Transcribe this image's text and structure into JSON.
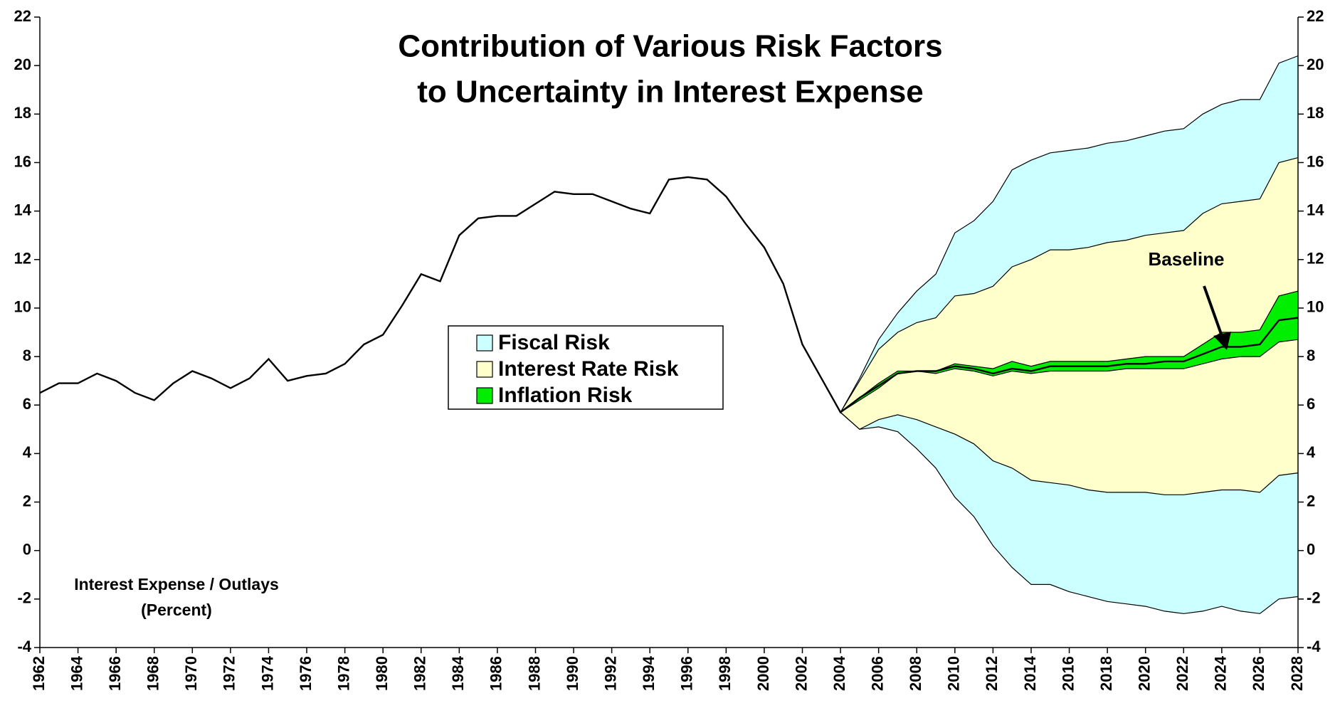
{
  "chart_data": {
    "type": "fan",
    "title": [
      "Contribution of Various Risk Factors",
      "to Uncertainty in Interest Expense"
    ],
    "ylabel": [
      "Interest Expense / Outlays",
      "(Percent)"
    ],
    "annotation": "Baseline",
    "x": [
      1962,
      1963,
      1964,
      1965,
      1966,
      1967,
      1968,
      1969,
      1970,
      1971,
      1972,
      1973,
      1974,
      1975,
      1976,
      1977,
      1978,
      1979,
      1980,
      1981,
      1982,
      1983,
      1984,
      1985,
      1986,
      1987,
      1988,
      1989,
      1990,
      1991,
      1992,
      1993,
      1994,
      1995,
      1996,
      1997,
      1998,
      1999,
      2000,
      2001,
      2002,
      2003,
      2004,
      2005,
      2006,
      2007,
      2008,
      2009,
      2010,
      2011,
      2012,
      2013,
      2014,
      2015,
      2016,
      2017,
      2018,
      2019,
      2020,
      2021,
      2022,
      2023,
      2024,
      2025,
      2026,
      2027,
      2028
    ],
    "line": [
      6.5,
      6.9,
      6.9,
      7.3,
      7.0,
      6.5,
      6.2,
      6.9,
      7.4,
      7.1,
      6.7,
      7.1,
      7.9,
      7.0,
      7.2,
      7.3,
      7.7,
      8.5,
      8.9,
      10.1,
      11.4,
      11.1,
      13.0,
      13.7,
      13.8,
      13.8,
      14.3,
      14.8,
      14.7,
      14.7,
      14.4,
      14.1,
      13.9,
      15.3,
      15.4,
      15.3,
      14.6,
      13.5,
      12.5,
      11.0,
      8.5,
      7.1,
      5.7,
      6.3,
      6.8,
      7.3,
      7.4,
      7.4,
      7.6,
      7.5,
      7.3,
      7.5,
      7.4,
      7.6,
      7.6,
      7.6,
      7.6,
      7.7,
      7.7,
      7.8,
      7.8,
      8.1,
      8.4,
      8.4,
      8.5,
      9.5,
      9.6
    ],
    "line_color": "#000000",
    "series": [
      {
        "name": "Fiscal Risk",
        "color": "#ccffff",
        "upper": [
          null,
          null,
          null,
          null,
          null,
          null,
          null,
          null,
          null,
          null,
          null,
          null,
          null,
          null,
          null,
          null,
          null,
          null,
          null,
          null,
          null,
          null,
          null,
          null,
          null,
          null,
          null,
          null,
          null,
          null,
          null,
          null,
          null,
          null,
          null,
          null,
          null,
          null,
          null,
          null,
          null,
          null,
          5.7,
          7.1,
          8.7,
          9.8,
          10.7,
          11.4,
          13.1,
          13.6,
          14.4,
          15.7,
          16.1,
          16.4,
          16.5,
          16.6,
          16.8,
          16.9,
          17.1,
          17.3,
          17.4,
          18.0,
          18.4,
          18.6,
          18.6,
          20.1,
          20.4
        ],
        "lower": [
          null,
          null,
          null,
          null,
          null,
          null,
          null,
          null,
          null,
          null,
          null,
          null,
          null,
          null,
          null,
          null,
          null,
          null,
          null,
          null,
          null,
          null,
          null,
          null,
          null,
          null,
          null,
          null,
          null,
          null,
          null,
          null,
          null,
          null,
          null,
          null,
          null,
          null,
          null,
          null,
          null,
          null,
          5.7,
          5.0,
          5.1,
          4.9,
          4.2,
          3.4,
          2.2,
          1.4,
          0.2,
          -0.7,
          -1.4,
          -1.4,
          -1.7,
          -1.9,
          -2.1,
          -2.2,
          -2.3,
          -2.5,
          -2.6,
          -2.5,
          -2.3,
          -2.5,
          -2.6,
          -2.0,
          -1.9
        ]
      },
      {
        "name": "Interest Rate Risk",
        "color": "#ffffcc",
        "upper": [
          null,
          null,
          null,
          null,
          null,
          null,
          null,
          null,
          null,
          null,
          null,
          null,
          null,
          null,
          null,
          null,
          null,
          null,
          null,
          null,
          null,
          null,
          null,
          null,
          null,
          null,
          null,
          null,
          null,
          null,
          null,
          null,
          null,
          null,
          null,
          null,
          null,
          null,
          null,
          null,
          null,
          null,
          5.7,
          7.0,
          8.3,
          9.0,
          9.4,
          9.6,
          10.5,
          10.6,
          10.9,
          11.7,
          12.0,
          12.4,
          12.4,
          12.5,
          12.7,
          12.8,
          13.0,
          13.1,
          13.2,
          13.9,
          14.3,
          14.4,
          14.5,
          16.0,
          16.2
        ],
        "lower": [
          null,
          null,
          null,
          null,
          null,
          null,
          null,
          null,
          null,
          null,
          null,
          null,
          null,
          null,
          null,
          null,
          null,
          null,
          null,
          null,
          null,
          null,
          null,
          null,
          null,
          null,
          null,
          null,
          null,
          null,
          null,
          null,
          null,
          null,
          null,
          null,
          null,
          null,
          null,
          null,
          null,
          null,
          5.7,
          5.0,
          5.4,
          5.6,
          5.4,
          5.1,
          4.8,
          4.4,
          3.7,
          3.4,
          2.9,
          2.8,
          2.7,
          2.5,
          2.4,
          2.4,
          2.4,
          2.3,
          2.3,
          2.4,
          2.5,
          2.5,
          2.4,
          3.1,
          3.2
        ]
      },
      {
        "name": "Inflation Risk",
        "color": "#00ee00",
        "upper": [
          null,
          null,
          null,
          null,
          null,
          null,
          null,
          null,
          null,
          null,
          null,
          null,
          null,
          null,
          null,
          null,
          null,
          null,
          null,
          null,
          null,
          null,
          null,
          null,
          null,
          null,
          null,
          null,
          null,
          null,
          null,
          null,
          null,
          null,
          null,
          null,
          null,
          null,
          null,
          null,
          null,
          null,
          5.7,
          6.3,
          6.9,
          7.4,
          7.4,
          7.4,
          7.7,
          7.6,
          7.5,
          7.8,
          7.6,
          7.8,
          7.8,
          7.8,
          7.8,
          7.9,
          8.0,
          8.0,
          8.0,
          8.5,
          9.0,
          9.0,
          9.1,
          10.5,
          10.7
        ],
        "lower": [
          null,
          null,
          null,
          null,
          null,
          null,
          null,
          null,
          null,
          null,
          null,
          null,
          null,
          null,
          null,
          null,
          null,
          null,
          null,
          null,
          null,
          null,
          null,
          null,
          null,
          null,
          null,
          null,
          null,
          null,
          null,
          null,
          null,
          null,
          null,
          null,
          null,
          null,
          null,
          null,
          null,
          null,
          5.7,
          6.2,
          6.7,
          7.3,
          7.4,
          7.3,
          7.5,
          7.4,
          7.2,
          7.4,
          7.3,
          7.4,
          7.4,
          7.4,
          7.4,
          7.5,
          7.5,
          7.5,
          7.5,
          7.7,
          7.9,
          8.0,
          8.0,
          8.6,
          8.7
        ]
      }
    ],
    "xlim": [
      1962,
      2028
    ],
    "xticks": [
      1962,
      1964,
      1966,
      1968,
      1970,
      1972,
      1974,
      1976,
      1978,
      1980,
      1982,
      1984,
      1986,
      1988,
      1990,
      1992,
      1994,
      1996,
      1998,
      2000,
      2002,
      2004,
      2006,
      2008,
      2010,
      2012,
      2014,
      2016,
      2018,
      2020,
      2022,
      2024,
      2026,
      2028
    ],
    "ylim": [
      -4,
      22
    ],
    "yticks": [
      -4,
      -2,
      0,
      2,
      4,
      6,
      8,
      10,
      12,
      14,
      16,
      18,
      20,
      22
    ],
    "grid": false
  }
}
